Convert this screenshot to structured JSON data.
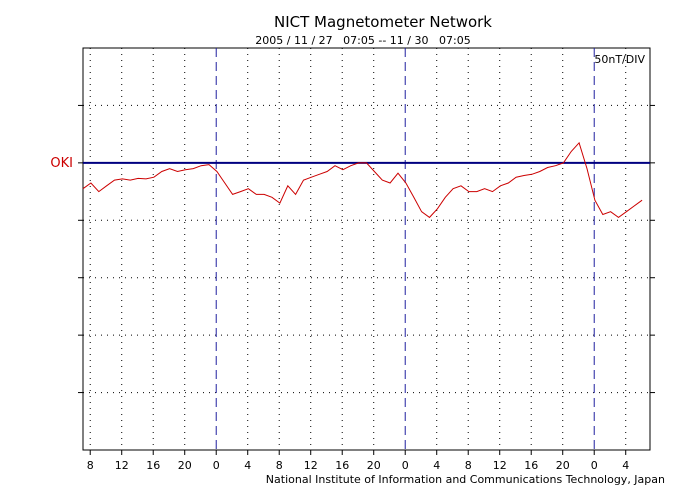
{
  "chart_data": {
    "type": "line",
    "title": "NICT Magnetometer Network",
    "subtitle": "2005 / 11 / 27   07:05 -- 11 / 30   07:05",
    "scale_label": "50nT/DIV",
    "credit": "National Institute of Information and Communications Technology, Japan",
    "xlim": [
      0,
      72
    ],
    "ylim": [
      0,
      7
    ],
    "y_divisions": 7,
    "x_tick_labels": [
      "8",
      "12",
      "16",
      "20",
      "0",
      "4",
      "8",
      "12",
      "16",
      "20",
      "0",
      "4",
      "8",
      "12",
      "16",
      "20",
      "0",
      "4"
    ],
    "x_tick_hours": [
      0.917,
      4.917,
      8.917,
      12.917,
      16.917,
      20.917,
      24.917,
      28.917,
      32.917,
      36.917,
      40.917,
      44.917,
      48.917,
      52.917,
      56.917,
      60.917,
      64.917,
      68.917
    ],
    "day_boundaries_hours": [
      16.917,
      40.917,
      64.917
    ],
    "reference_line_value": 5,
    "series": [
      {
        "name": "OKI",
        "color": "#cc0000",
        "label_color": "#cc0000",
        "x": [
          0,
          1,
          2,
          3,
          4,
          5,
          6,
          7,
          8,
          9,
          10,
          11,
          12,
          13,
          14,
          15,
          16,
          17,
          18,
          19,
          20,
          21,
          22,
          23,
          24,
          25,
          26,
          27,
          28,
          29,
          30,
          31,
          32,
          33,
          34,
          35,
          36,
          37,
          38,
          39,
          40,
          41,
          42,
          43,
          44,
          45,
          46,
          47,
          48,
          49,
          50,
          51,
          52,
          53,
          54,
          55,
          56,
          57,
          58,
          59,
          60,
          61,
          62,
          63,
          64,
          65,
          66,
          67,
          68,
          69,
          70,
          71
        ],
        "y": [
          4.55,
          4.65,
          4.5,
          4.6,
          4.7,
          4.72,
          4.7,
          4.73,
          4.72,
          4.75,
          4.85,
          4.9,
          4.85,
          4.88,
          4.9,
          4.95,
          4.97,
          4.85,
          4.65,
          4.45,
          4.5,
          4.55,
          4.45,
          4.45,
          4.4,
          4.3,
          4.6,
          4.45,
          4.7,
          4.75,
          4.8,
          4.85,
          4.95,
          4.88,
          4.95,
          5.0,
          5.0,
          4.85,
          4.7,
          4.65,
          4.82,
          4.65,
          4.4,
          4.15,
          4.05,
          4.2,
          4.4,
          4.55,
          4.6,
          4.5,
          4.5,
          4.55,
          4.5,
          4.6,
          4.65,
          4.75,
          4.78,
          4.8,
          4.85,
          4.92,
          4.95,
          5.0,
          5.2,
          5.35,
          4.9,
          4.35,
          4.1,
          4.15,
          4.05,
          4.15,
          4.25,
          4.35
        ]
      }
    ]
  }
}
